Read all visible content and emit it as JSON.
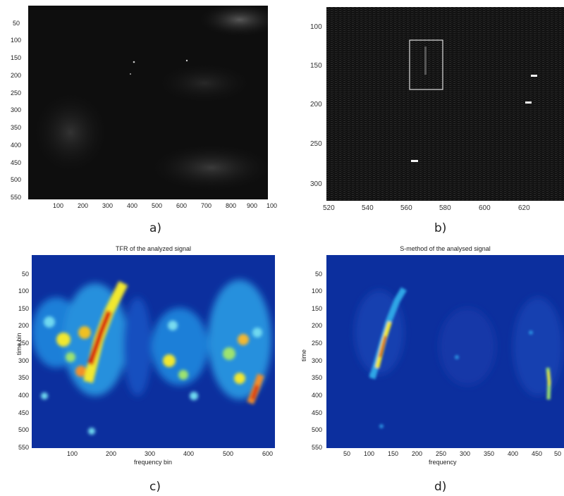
{
  "figure": {
    "panel_a": {
      "caption": "a)",
      "y_ticks": [
        "50",
        "100",
        "150",
        "200",
        "250",
        "300",
        "350",
        "400",
        "450",
        "500",
        "550"
      ],
      "x_ticks": [
        "100",
        "200",
        "300",
        "400",
        "500",
        "600",
        "700",
        "800",
        "900",
        "100"
      ]
    },
    "panel_b": {
      "caption": "b)",
      "y_ticks": [
        "100",
        "150",
        "200",
        "250",
        "300"
      ],
      "x_ticks": [
        "520",
        "540",
        "560",
        "580",
        "600",
        "620"
      ]
    },
    "panel_c": {
      "caption": "c)",
      "title": "TFR of the analyzed signal",
      "xlabel": "frequency bin",
      "ylabel": "time bin",
      "y_ticks": [
        "50",
        "100",
        "150",
        "200",
        "250",
        "300",
        "350",
        "400",
        "450",
        "500",
        "550"
      ],
      "x_ticks": [
        "100",
        "200",
        "300",
        "400",
        "500",
        "600"
      ]
    },
    "panel_d": {
      "caption": "d)",
      "title": "S-method of the analysed signal",
      "xlabel": "frequency",
      "ylabel": "time",
      "y_ticks": [
        "50",
        "100",
        "150",
        "200",
        "250",
        "300",
        "350",
        "400",
        "450",
        "500",
        "550"
      ],
      "x_ticks": [
        "50",
        "100",
        "150",
        "200",
        "250",
        "300",
        "350",
        "400",
        "450",
        "50"
      ]
    }
  },
  "colors": {
    "radar_bg": "#0e0e0e",
    "jet_bg": "#0c2f9e",
    "jet_mid": "#2fa6e6",
    "jet_hot": "#d81a10"
  }
}
